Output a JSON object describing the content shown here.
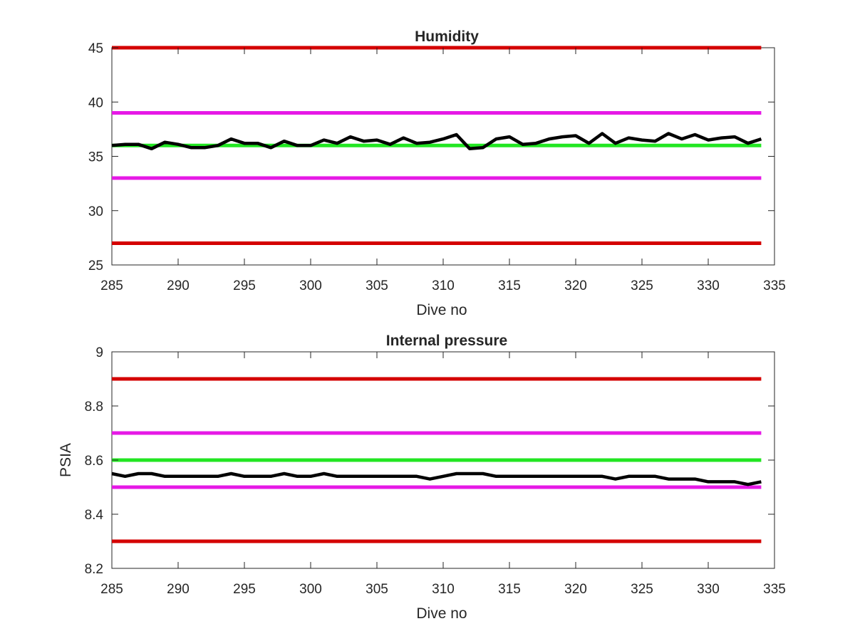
{
  "chart_data": [
    {
      "type": "line",
      "title": "Humidity",
      "xlabel": "Dive no",
      "ylabel": "",
      "xlim": [
        285,
        335
      ],
      "ylim": [
        25,
        45
      ],
      "xticks": [
        285,
        290,
        295,
        300,
        305,
        310,
        315,
        320,
        325,
        330,
        335
      ],
      "yticks": [
        25,
        30,
        35,
        40,
        45
      ],
      "grid": false,
      "reference_lines": [
        {
          "y": 45,
          "color": "#d40000"
        },
        {
          "y": 39,
          "color": "#e619e6"
        },
        {
          "y": 36,
          "color": "#22e622"
        },
        {
          "y": 33,
          "color": "#e619e6"
        },
        {
          "y": 27,
          "color": "#d40000"
        }
      ],
      "series": [
        {
          "color": "#000000",
          "x": [
            285,
            286,
            287,
            288,
            289,
            290,
            291,
            292,
            293,
            294,
            295,
            296,
            297,
            298,
            299,
            300,
            301,
            302,
            303,
            304,
            305,
            306,
            307,
            308,
            309,
            310,
            311,
            312,
            313,
            314,
            315,
            316,
            317,
            318,
            319,
            320,
            321,
            322,
            323,
            324,
            325,
            326,
            327,
            328,
            329,
            330,
            331,
            332,
            333,
            334
          ],
          "values": [
            36.0,
            36.1,
            36.1,
            35.7,
            36.3,
            36.1,
            35.8,
            35.8,
            36.0,
            36.6,
            36.2,
            36.2,
            35.8,
            36.4,
            36.0,
            36.0,
            36.5,
            36.2,
            36.8,
            36.4,
            36.5,
            36.1,
            36.7,
            36.2,
            36.3,
            36.6,
            37.0,
            35.7,
            35.8,
            36.6,
            36.8,
            36.1,
            36.2,
            36.6,
            36.8,
            36.9,
            36.2,
            37.1,
            36.2,
            36.7,
            36.5,
            36.4,
            37.1,
            36.6,
            37.0,
            36.5,
            36.7,
            36.8,
            36.2,
            36.6
          ]
        }
      ]
    },
    {
      "type": "line",
      "title": "Internal pressure",
      "xlabel": "Dive no",
      "ylabel": "PSIA",
      "xlim": [
        285,
        335
      ],
      "ylim": [
        8.2,
        9.0
      ],
      "xticks": [
        285,
        290,
        295,
        300,
        305,
        310,
        315,
        320,
        325,
        330,
        335
      ],
      "yticks": [
        "8.2",
        "8.4",
        "8.6",
        "8.8",
        "9"
      ],
      "grid": false,
      "reference_lines": [
        {
          "y": 8.9,
          "color": "#d40000"
        },
        {
          "y": 8.7,
          "color": "#e619e6"
        },
        {
          "y": 8.6,
          "color": "#22e622"
        },
        {
          "y": 8.5,
          "color": "#e619e6"
        },
        {
          "y": 8.3,
          "color": "#d40000"
        }
      ],
      "series": [
        {
          "color": "#000000",
          "x": [
            285,
            286,
            287,
            288,
            289,
            290,
            291,
            292,
            293,
            294,
            295,
            296,
            297,
            298,
            299,
            300,
            301,
            302,
            303,
            304,
            305,
            306,
            307,
            308,
            309,
            310,
            311,
            312,
            313,
            314,
            315,
            316,
            317,
            318,
            319,
            320,
            321,
            322,
            323,
            324,
            325,
            326,
            327,
            328,
            329,
            330,
            331,
            332,
            333,
            334
          ],
          "values": [
            8.55,
            8.54,
            8.55,
            8.55,
            8.54,
            8.54,
            8.54,
            8.54,
            8.54,
            8.55,
            8.54,
            8.54,
            8.54,
            8.55,
            8.54,
            8.54,
            8.55,
            8.54,
            8.54,
            8.54,
            8.54,
            8.54,
            8.54,
            8.54,
            8.53,
            8.54,
            8.55,
            8.55,
            8.55,
            8.54,
            8.54,
            8.54,
            8.54,
            8.54,
            8.54,
            8.54,
            8.54,
            8.54,
            8.53,
            8.54,
            8.54,
            8.54,
            8.53,
            8.53,
            8.53,
            8.52,
            8.52,
            8.52,
            8.51,
            8.52
          ]
        }
      ]
    }
  ]
}
